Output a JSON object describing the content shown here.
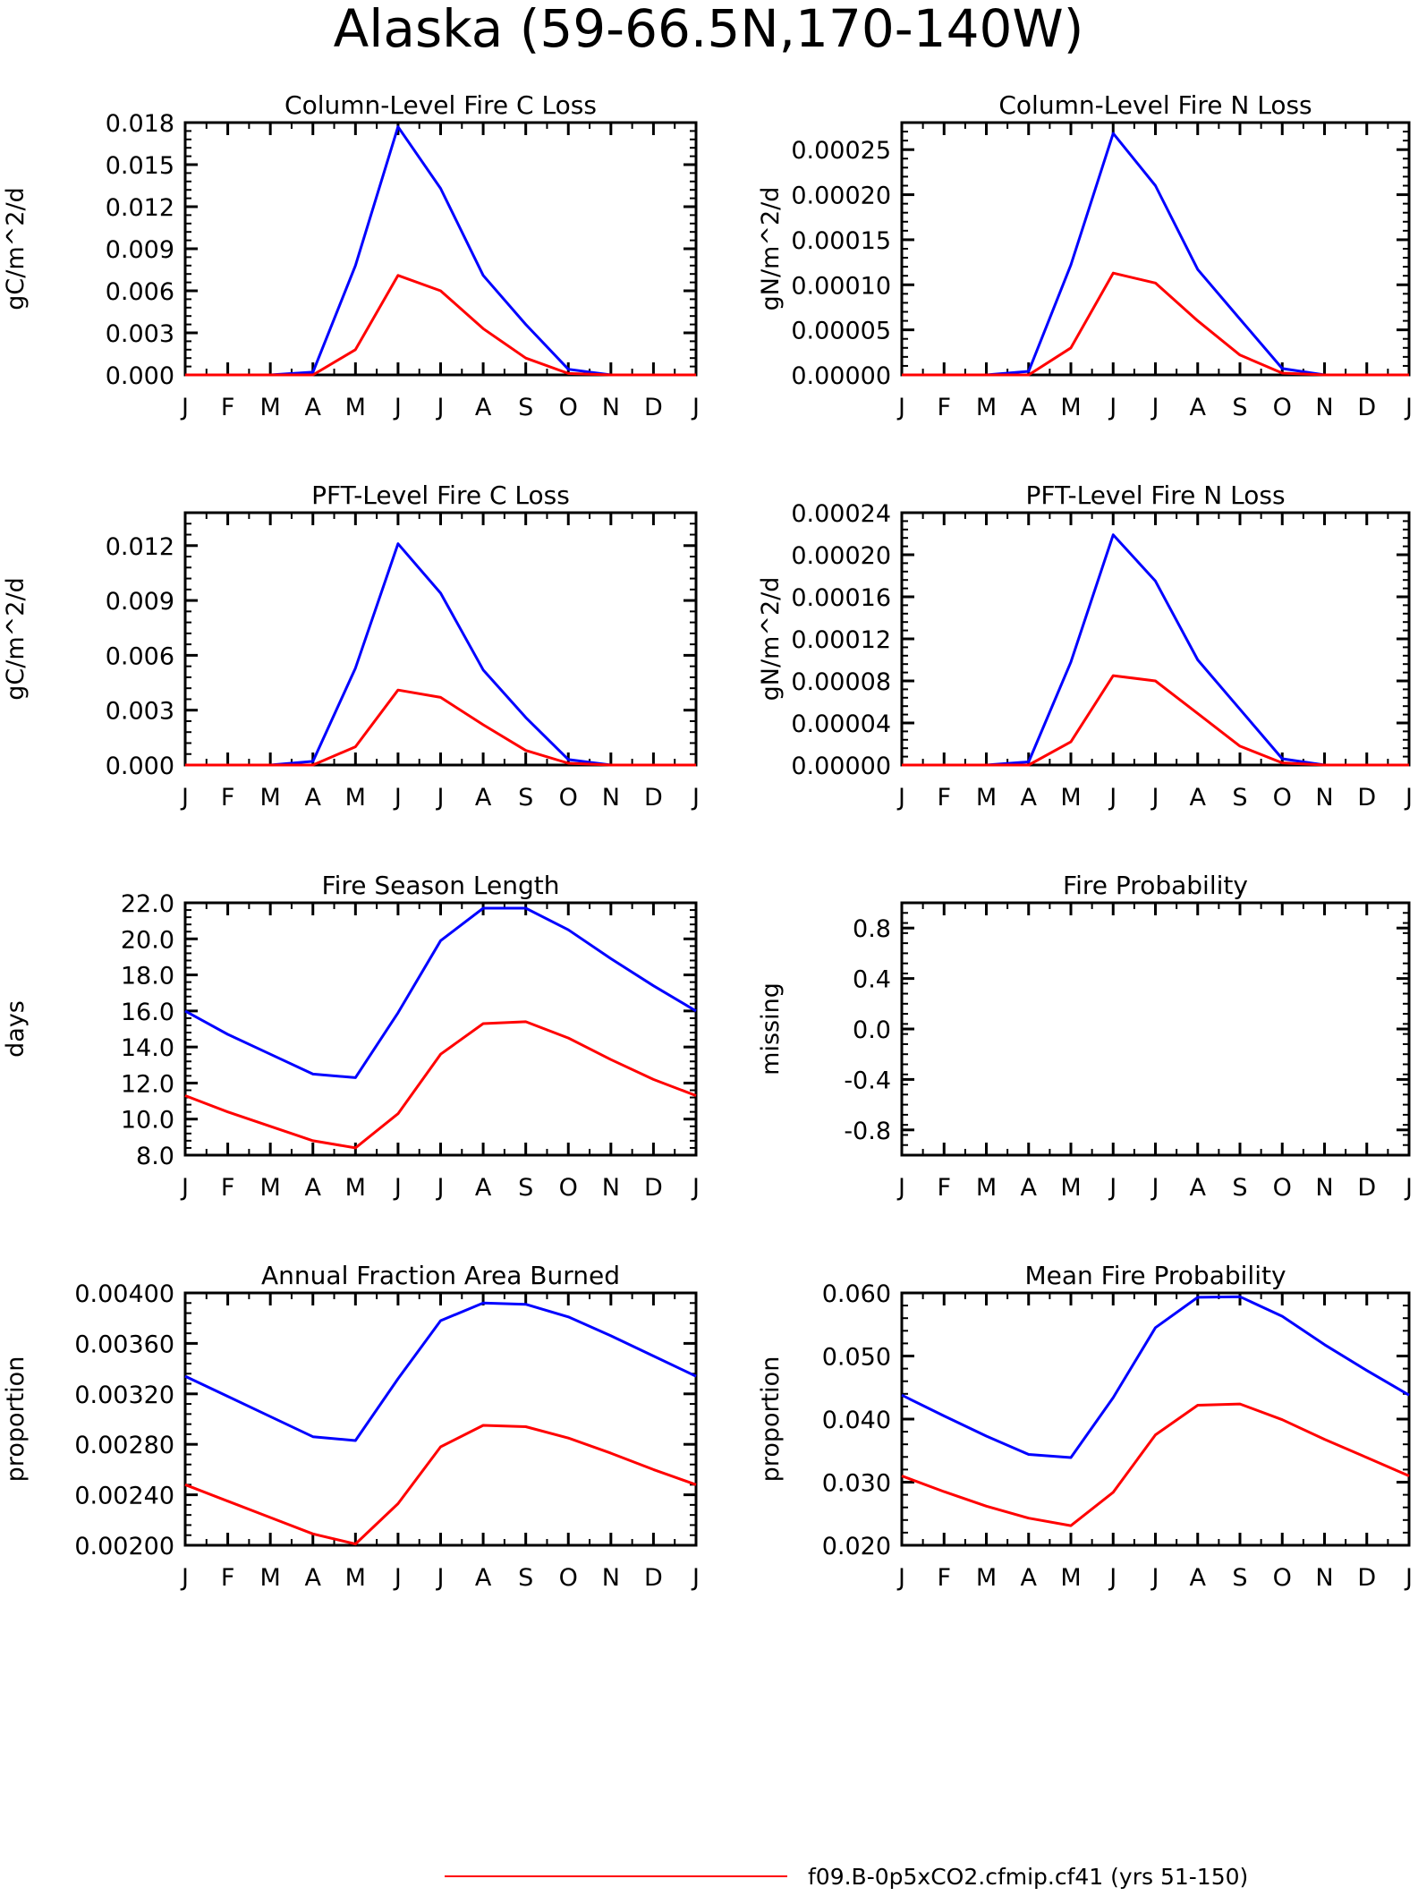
{
  "figure_title": "Alaska (59-66.5N,170-140W)",
  "legend": {
    "entries": [
      {
        "label": "f09.B-0p5xCO2.cfmip.cf41 (yrs 51-150)",
        "color": "#ff0000"
      }
    ]
  },
  "chart_data": [
    {
      "type": "line",
      "title": "Column-Level Fire C Loss",
      "ylabel": "gC/m^2/d",
      "ylim": [
        0,
        0.018
      ],
      "y_ticks": [
        "0.000",
        "0.003",
        "0.006",
        "0.009",
        "0.012",
        "0.015",
        "0.018"
      ],
      "x_ticks": [
        "J",
        "F",
        "M",
        "A",
        "M",
        "J",
        "J",
        "A",
        "S",
        "O",
        "N",
        "D",
        "J"
      ],
      "series": [
        {
          "color": "#0000ff",
          "values": [
            0,
            0,
            0,
            0.0002,
            0.0078,
            0.0177,
            0.0133,
            0.0071,
            0.0036,
            0.0004,
            0,
            0,
            0
          ]
        },
        {
          "color": "#ff0000",
          "values": [
            0,
            0,
            0,
            0,
            0.0018,
            0.0071,
            0.006,
            0.0033,
            0.0012,
            0.0001,
            0,
            0,
            0
          ]
        }
      ]
    },
    {
      "type": "line",
      "title": "Column-Level Fire N Loss",
      "ylabel": "gN/m^2/d",
      "ylim": [
        0,
        0.00028
      ],
      "y_ticks": [
        "0.00000",
        "0.00005",
        "0.00010",
        "0.00015",
        "0.00020",
        "0.00025"
      ],
      "x_ticks": [
        "J",
        "F",
        "M",
        "A",
        "M",
        "J",
        "J",
        "A",
        "S",
        "O",
        "N",
        "D",
        "J"
      ],
      "series": [
        {
          "color": "#0000ff",
          "values": [
            0,
            0,
            0,
            4e-06,
            0.000122,
            0.000268,
            0.00021,
            0.000117,
            6.2e-05,
            7e-06,
            0,
            0,
            0
          ]
        },
        {
          "color": "#ff0000",
          "values": [
            0,
            0,
            0,
            0,
            3e-05,
            0.000113,
            0.000102,
            6e-05,
            2.2e-05,
            2e-06,
            0,
            0,
            0
          ]
        }
      ]
    },
    {
      "type": "line",
      "title": "PFT-Level Fire C Loss",
      "ylabel": "gC/m^2/d",
      "ylim": [
        0,
        0.0138
      ],
      "y_ticks": [
        "0.000",
        "0.003",
        "0.006",
        "0.009",
        "0.012"
      ],
      "x_ticks": [
        "J",
        "F",
        "M",
        "A",
        "M",
        "J",
        "J",
        "A",
        "S",
        "O",
        "N",
        "D",
        "J"
      ],
      "series": [
        {
          "color": "#0000ff",
          "values": [
            0,
            0,
            0,
            0.0002,
            0.0053,
            0.0121,
            0.0094,
            0.0052,
            0.0026,
            0.0003,
            0,
            0,
            0
          ]
        },
        {
          "color": "#ff0000",
          "values": [
            0,
            0,
            0,
            0,
            0.001,
            0.0041,
            0.0037,
            0.0022,
            0.0008,
            0.0001,
            0,
            0,
            0
          ]
        }
      ]
    },
    {
      "type": "line",
      "title": "PFT-Level Fire N Loss",
      "ylabel": "gN/m^2/d",
      "ylim": [
        0,
        0.00024
      ],
      "y_ticks": [
        "0.00000",
        "0.00004",
        "0.00008",
        "0.00012",
        "0.00016",
        "0.00020",
        "0.00024"
      ],
      "x_ticks": [
        "J",
        "F",
        "M",
        "A",
        "M",
        "J",
        "J",
        "A",
        "S",
        "O",
        "N",
        "D",
        "J"
      ],
      "series": [
        {
          "color": "#0000ff",
          "values": [
            0,
            0,
            0,
            3e-06,
            9.8e-05,
            0.000219,
            0.000175,
            0.0001,
            5.3e-05,
            6e-06,
            0,
            0,
            0
          ]
        },
        {
          "color": "#ff0000",
          "values": [
            0,
            0,
            0,
            0,
            2.2e-05,
            8.5e-05,
            8e-05,
            4.9e-05,
            1.8e-05,
            2e-06,
            0,
            0,
            0
          ]
        }
      ]
    },
    {
      "type": "line",
      "title": "Fire Season Length",
      "ylabel": "days",
      "ylim": [
        8,
        22
      ],
      "y_ticks": [
        "8.0",
        "10.0",
        "12.0",
        "14.0",
        "16.0",
        "18.0",
        "20.0",
        "22.0"
      ],
      "x_ticks": [
        "J",
        "F",
        "M",
        "A",
        "M",
        "J",
        "J",
        "A",
        "S",
        "O",
        "N",
        "D",
        "J"
      ],
      "series": [
        {
          "color": "#0000ff",
          "values": [
            16.0,
            14.7,
            13.6,
            12.5,
            12.3,
            15.9,
            19.9,
            21.7,
            21.7,
            20.5,
            18.9,
            17.4,
            16.0
          ]
        },
        {
          "color": "#ff0000",
          "values": [
            11.3,
            10.4,
            9.6,
            8.8,
            8.4,
            10.3,
            13.6,
            15.3,
            15.4,
            14.5,
            13.3,
            12.2,
            11.3
          ]
        }
      ]
    },
    {
      "type": "line",
      "title": "Fire Probability",
      "ylabel": "missing",
      "ylim": [
        -1,
        1
      ],
      "y_ticks": [
        "-0.8",
        "-0.4",
        "0.0",
        "0.4",
        "0.8"
      ],
      "x_ticks": [
        "J",
        "F",
        "M",
        "A",
        "M",
        "J",
        "J",
        "A",
        "S",
        "O",
        "N",
        "D",
        "J"
      ],
      "series": []
    },
    {
      "type": "line",
      "title": "Annual Fraction Area Burned",
      "ylabel": "proportion",
      "ylim": [
        0.002,
        0.004
      ],
      "y_ticks": [
        "0.00200",
        "0.00240",
        "0.00280",
        "0.00320",
        "0.00360",
        "0.00400"
      ],
      "x_ticks": [
        "J",
        "F",
        "M",
        "A",
        "M",
        "J",
        "J",
        "A",
        "S",
        "O",
        "N",
        "D",
        "J"
      ],
      "series": [
        {
          "color": "#0000ff",
          "values": [
            0.00334,
            0.00318,
            0.00302,
            0.00286,
            0.00283,
            0.00332,
            0.00378,
            0.00392,
            0.00391,
            0.00381,
            0.00366,
            0.0035,
            0.00334
          ]
        },
        {
          "color": "#ff0000",
          "values": [
            0.00248,
            0.00235,
            0.00222,
            0.00209,
            0.00201,
            0.00233,
            0.00278,
            0.00295,
            0.00294,
            0.00285,
            0.00273,
            0.0026,
            0.00248
          ]
        }
      ]
    },
    {
      "type": "line",
      "title": "Mean Fire Probability",
      "ylabel": "proportion",
      "ylim": [
        0.02,
        0.06
      ],
      "y_ticks": [
        "0.020",
        "0.030",
        "0.040",
        "0.050",
        "0.060"
      ],
      "x_ticks": [
        "J",
        "F",
        "M",
        "A",
        "M",
        "J",
        "J",
        "A",
        "S",
        "O",
        "N",
        "D",
        "J"
      ],
      "series": [
        {
          "color": "#0000ff",
          "values": [
            0.0438,
            0.0405,
            0.0373,
            0.0344,
            0.0339,
            0.0434,
            0.0545,
            0.0593,
            0.0594,
            0.0563,
            0.0518,
            0.0477,
            0.0438
          ]
        },
        {
          "color": "#ff0000",
          "values": [
            0.031,
            0.0285,
            0.0262,
            0.0243,
            0.0231,
            0.0284,
            0.0375,
            0.0422,
            0.0424,
            0.0399,
            0.0368,
            0.0339,
            0.031
          ]
        }
      ]
    }
  ]
}
